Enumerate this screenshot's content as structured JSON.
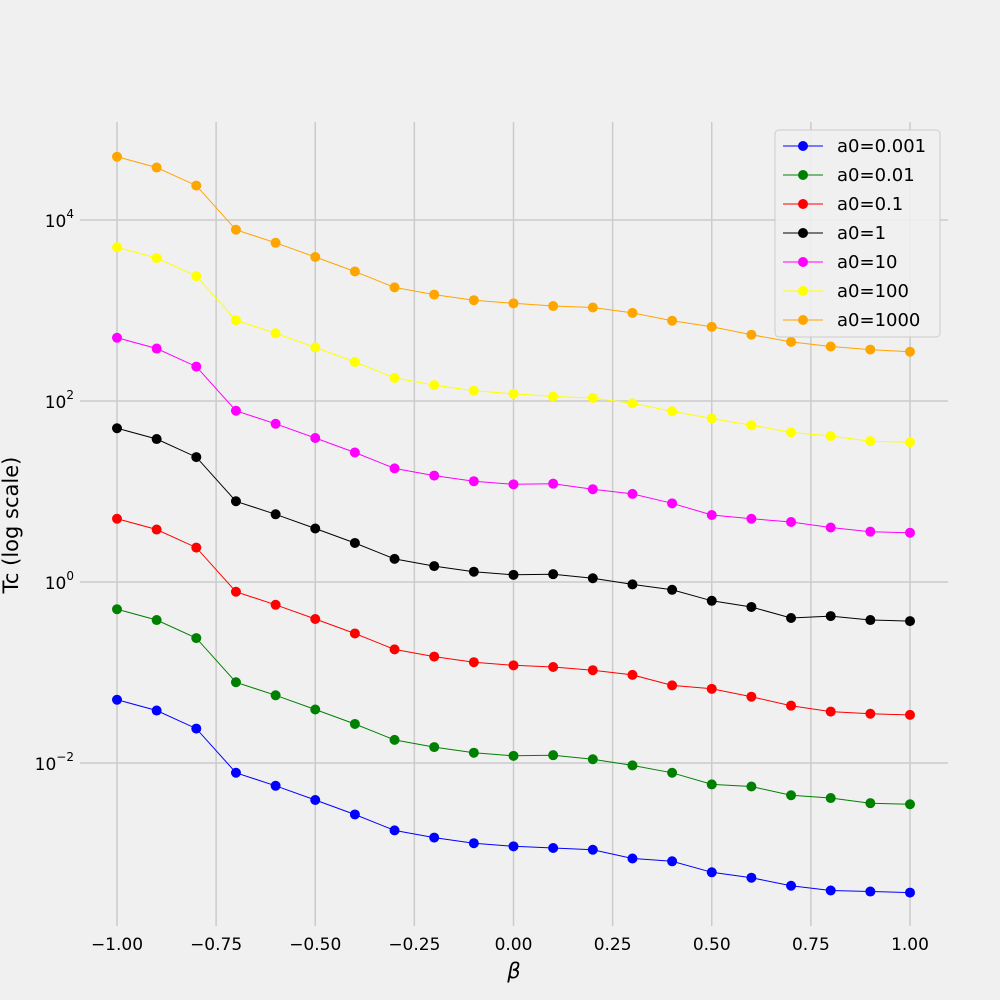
{
  "chart_data": {
    "type": "line",
    "title": "",
    "xlabel": "β",
    "ylabel": "Tc (log scale)",
    "y_scale": "log",
    "xlim": [
      -1.08,
      1.08
    ],
    "ylim": [
      0.0002,
      200000
    ],
    "grid": true,
    "legend_position": "top-right",
    "x_ticks": [
      -1.0,
      -0.75,
      -0.5,
      -0.25,
      0.0,
      0.25,
      0.5,
      0.75,
      1.0
    ],
    "x_tick_labels": [
      "−1.00",
      "−0.75",
      "−0.50",
      "−0.25",
      "0.00",
      "0.25",
      "0.50",
      "0.75",
      "1.00"
    ],
    "y_ticks": [
      {
        "value": 0.01,
        "base": "10",
        "exp": "−2"
      },
      {
        "value": 1,
        "base": "10",
        "exp": "0"
      },
      {
        "value": 100,
        "base": "10",
        "exp": "2"
      },
      {
        "value": 10000,
        "base": "10",
        "exp": "4"
      }
    ],
    "x": [
      -1.0,
      -0.9,
      -0.8,
      -0.7,
      -0.6,
      -0.5,
      -0.4,
      -0.3,
      -0.2,
      -0.1,
      0.0,
      0.1,
      0.2,
      0.3,
      0.4,
      0.5,
      0.6,
      0.7,
      0.8,
      0.9,
      1.0
    ],
    "series": [
      {
        "name": "a0=0.001",
        "color": "#0000ff",
        "values": [
          0.05,
          0.038,
          0.024,
          0.0078,
          0.0056,
          0.0039,
          0.0027,
          0.0018,
          0.0015,
          0.0013,
          0.0012,
          0.00115,
          0.0011,
          0.00088,
          0.00082,
          0.00062,
          0.00054,
          0.00044,
          0.00039,
          0.00038,
          0.00037
        ]
      },
      {
        "name": "a0=0.01",
        "color": "#008000",
        "values": [
          0.5,
          0.38,
          0.24,
          0.078,
          0.056,
          0.039,
          0.027,
          0.018,
          0.015,
          0.013,
          0.012,
          0.0122,
          0.011,
          0.0094,
          0.0078,
          0.0058,
          0.0055,
          0.0044,
          0.0041,
          0.0036,
          0.0035
        ]
      },
      {
        "name": "a0=0.1",
        "color": "#ff0000",
        "values": [
          5.0,
          3.8,
          2.4,
          0.78,
          0.56,
          0.39,
          0.27,
          0.18,
          0.15,
          0.13,
          0.12,
          0.115,
          0.106,
          0.094,
          0.072,
          0.066,
          0.054,
          0.043,
          0.037,
          0.035,
          0.034
        ]
      },
      {
        "name": "a0=1",
        "color": "#000000",
        "values": [
          50,
          38,
          24,
          7.8,
          5.6,
          3.9,
          2.7,
          1.8,
          1.5,
          1.3,
          1.2,
          1.22,
          1.1,
          0.94,
          0.82,
          0.62,
          0.53,
          0.4,
          0.42,
          0.38,
          0.37
        ]
      },
      {
        "name": "a0=10",
        "color": "#ff00ff",
        "values": [
          500,
          380,
          240,
          78,
          56,
          39,
          27,
          18,
          15,
          13,
          12,
          12.2,
          10.6,
          9.4,
          7.4,
          5.5,
          5.0,
          4.6,
          4.0,
          3.6,
          3.5
        ]
      },
      {
        "name": "a0=100",
        "color": "#ffff00",
        "values": [
          5000,
          3800,
          2400,
          780,
          560,
          390,
          270,
          180,
          150,
          130,
          120,
          112,
          108,
          94,
          77,
          64,
          54,
          45,
          41,
          36,
          35
        ]
      },
      {
        "name": "a0=1000",
        "color": "#ffa500",
        "values": [
          50000,
          38000,
          24000,
          7800,
          5600,
          3900,
          2700,
          1800,
          1500,
          1300,
          1200,
          1120,
          1080,
          940,
          770,
          660,
          540,
          450,
          400,
          370,
          350
        ]
      }
    ]
  }
}
